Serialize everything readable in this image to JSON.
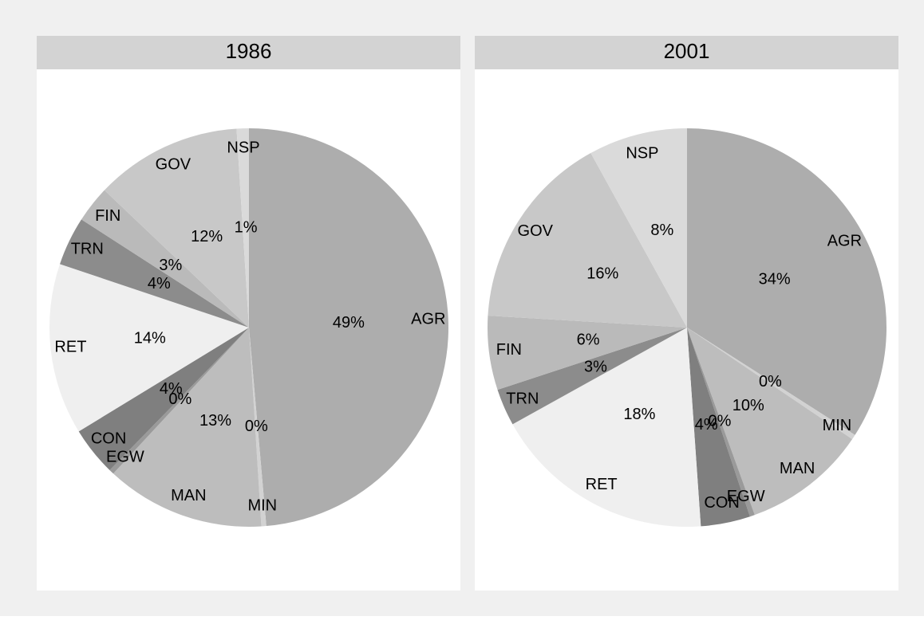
{
  "chart_data": [
    {
      "type": "pie",
      "title": "1986",
      "categories": [
        "AGR",
        "MIN",
        "MAN",
        "EGW",
        "CON",
        "RET",
        "TRN",
        "FIN",
        "GOV",
        "NSP"
      ],
      "values": [
        49,
        0.4,
        13,
        0.4,
        4,
        14,
        4,
        3,
        12,
        1
      ],
      "value_labels": [
        "49%",
        "0%",
        "13%",
        "0%",
        "4%",
        "14%",
        "4%",
        "3%",
        "12%",
        "1%"
      ],
      "colors": [
        "#adadad",
        "#d2d2d2",
        "#bdbdbd",
        "#9a9a9a",
        "#7f7f7f",
        "#efefef",
        "#8c8c8c",
        "#bababa",
        "#c8c8c8",
        "#dadada"
      ]
    },
    {
      "type": "pie",
      "title": "2001",
      "categories": [
        "AGR",
        "MIN",
        "MAN",
        "EGW",
        "CON",
        "RET",
        "TRN",
        "FIN",
        "GOV",
        "NSP"
      ],
      "values": [
        34,
        0.4,
        10,
        0.4,
        4,
        18,
        3,
        6,
        16,
        8
      ],
      "value_labels": [
        "34%",
        "0%",
        "10%",
        "0%",
        "4%",
        "18%",
        "3%",
        "6%",
        "16%",
        "8%"
      ],
      "colors": [
        "#adadad",
        "#d2d2d2",
        "#bdbdbd",
        "#9a9a9a",
        "#7f7f7f",
        "#efefef",
        "#8c8c8c",
        "#bababa",
        "#c8c8c8",
        "#dadada"
      ]
    }
  ]
}
